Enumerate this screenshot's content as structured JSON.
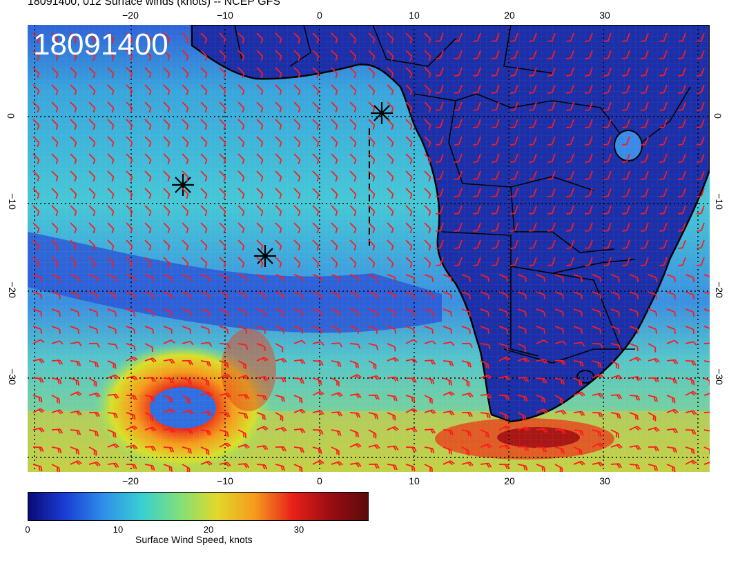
{
  "header": {
    "title": "18091400, 012 Surface winds (knots) -- NCEP GFS"
  },
  "map": {
    "stamp": "18091400",
    "lon_ticks": [
      "−20",
      "−10",
      "0",
      "10",
      "20",
      "30"
    ],
    "lat_ticks": [
      "0",
      "−10",
      "−20",
      "−30"
    ],
    "barb_color": "#ff1a1a",
    "land_outline_color": "#000000"
  },
  "colorbar": {
    "label": "Surface Wind Speed, knots",
    "ticks": [
      "0",
      "10",
      "20",
      "30"
    ],
    "colors": [
      "#0a0a78",
      "#1a3fd6",
      "#2f8fe8",
      "#38cfd2",
      "#7fe07a",
      "#e2d82a",
      "#f59b1d",
      "#e8211a",
      "#9a0d12",
      "#5b0b0b"
    ]
  }
}
